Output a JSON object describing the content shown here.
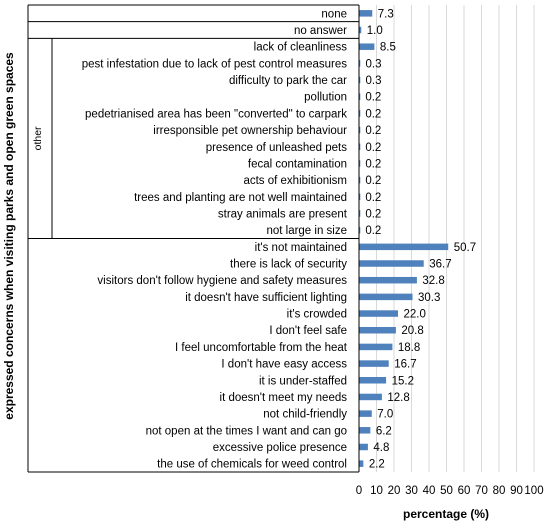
{
  "chart_data": {
    "type": "bar",
    "orientation": "horizontal",
    "color": "#4f81bd",
    "categories": [
      "none",
      "no answer",
      "lack of cleanliness",
      "pest infestation due to lack of pest control measures",
      "difficulty to park the car",
      "pollution",
      "pedetrianised area has been \"converted\" to carpark",
      "irresponsible pet ownership behaviour",
      "presence of unleashed pets",
      "fecal contamination",
      "acts of exhibitionism",
      "trees and planting are not well maintained",
      "stray animals are present",
      "not large in size",
      "it's not maintained",
      "there is lack of security",
      "visitors don't follow hygiene and safety measures",
      "it doesn't have sufficient lighting",
      "it's crowded",
      "I don't feel safe",
      "I feel uncomfortable from the heat",
      "I don't have easy access",
      "it is under-staffed",
      "it doesn't meet my needs",
      "not child-friendly",
      "not open at the times I want and can go",
      "excessive police presence",
      "the use of chemicals for weed control"
    ],
    "values": [
      7.3,
      1.0,
      8.5,
      0.3,
      0.3,
      0.2,
      0.2,
      0.2,
      0.2,
      0.2,
      0.2,
      0.2,
      0.2,
      0.2,
      50.7,
      36.7,
      32.8,
      30.3,
      22.0,
      20.8,
      18.8,
      16.7,
      15.2,
      12.8,
      7.0,
      6.2,
      4.8,
      2.2
    ],
    "value_labels": [
      "7.3",
      "1.0",
      "8.5",
      "0.3",
      "0.3",
      "0.2",
      "0.2",
      "0.2",
      "0.2",
      "0.2",
      "0.2",
      "0.2",
      "0.2",
      "0.2",
      "50.7",
      "36.7",
      "32.8",
      "30.3",
      "22.0",
      "20.8",
      "18.8",
      "16.7",
      "15.2",
      "12.8",
      "7.0",
      "6.2",
      "4.8",
      "2.2"
    ],
    "group_label": "other",
    "group_range": [
      2,
      13
    ],
    "xlabel": "percentage (%)",
    "ylabel": "expressed concerns  when visiting parks and open green spaces",
    "xlim": [
      0,
      100
    ],
    "x_ticks": [
      0,
      10,
      20,
      30,
      40,
      50,
      60,
      70,
      80,
      90,
      100
    ],
    "x_tick_labels": [
      "0",
      "10",
      "20",
      "30",
      "40",
      "50",
      "60",
      "70",
      "80",
      "90",
      "100"
    ],
    "grid": true
  }
}
